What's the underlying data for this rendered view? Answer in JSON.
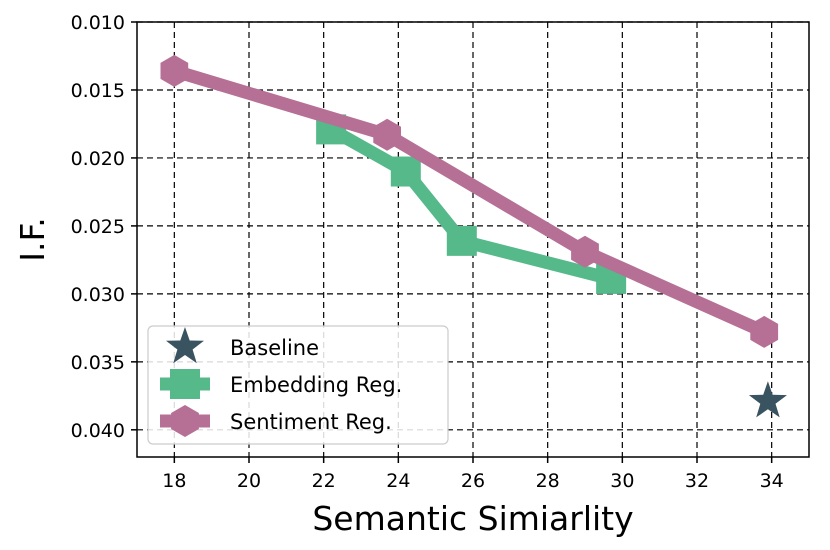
{
  "chart_data": {
    "type": "line",
    "title": "",
    "xlabel": "Semantic Simiarlity",
    "ylabel": "I.F.",
    "xlim": [
      17,
      35
    ],
    "ylim": [
      0.01,
      0.042
    ],
    "y_inverted": true,
    "grid": true,
    "xticks": [
      18,
      20,
      22,
      24,
      26,
      28,
      30,
      32,
      34
    ],
    "yticks": [
      0.01,
      0.015,
      0.02,
      0.025,
      0.03,
      0.035,
      0.04
    ],
    "xtick_labels": [
      "18",
      "20",
      "22",
      "24",
      "26",
      "28",
      "30",
      "32",
      "34"
    ],
    "ytick_labels": [
      "0.010",
      "0.015",
      "0.020",
      "0.025",
      "0.030",
      "0.035",
      "0.040"
    ],
    "legend_position": "lower-left",
    "series": [
      {
        "name": "Baseline",
        "marker": "star",
        "color": "#3a5361",
        "x": [
          33.9
        ],
        "y": [
          0.0379
        ]
      },
      {
        "name": "Embedding Reg.",
        "marker": "square",
        "color": "#55b98a",
        "x": [
          22.2,
          24.2,
          25.7,
          29.7
        ],
        "y": [
          0.0179,
          0.021,
          0.0261,
          0.0289
        ]
      },
      {
        "name": "Sentiment Reg.",
        "marker": "hexagon",
        "color": "#b67095",
        "x": [
          18.0,
          23.7,
          29.0,
          33.8
        ],
        "y": [
          0.0136,
          0.0183,
          0.0269,
          0.0328
        ]
      }
    ]
  }
}
